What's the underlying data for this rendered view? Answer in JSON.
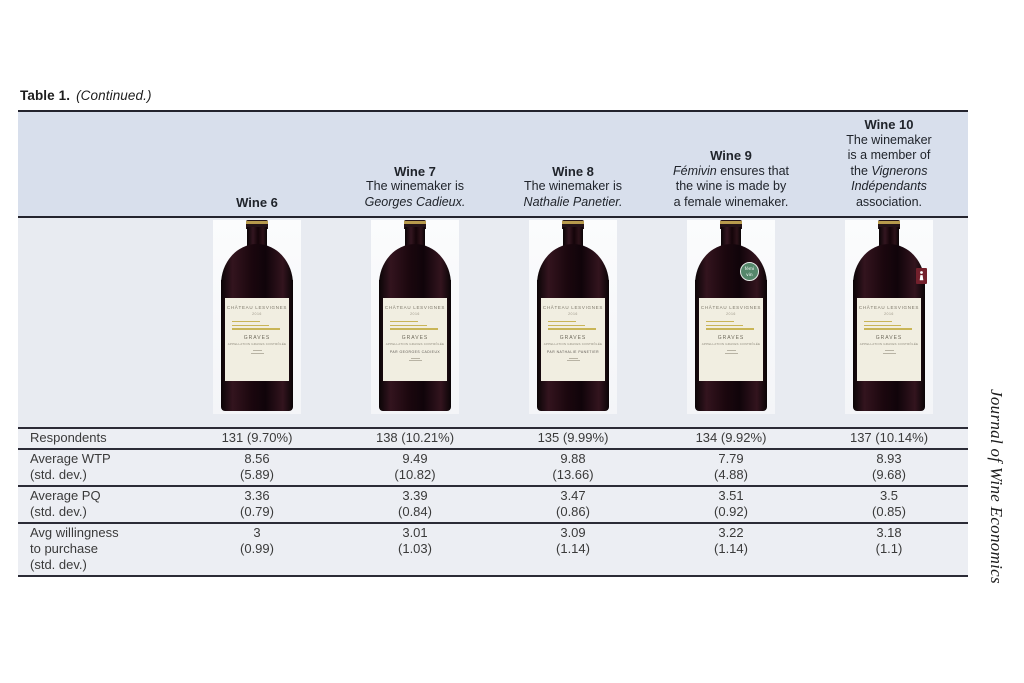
{
  "page": {
    "table_label": "Table 1.",
    "table_label_continued": "(Continued.)",
    "journal_sidebar": "Journal of Wine Economics"
  },
  "colors": {
    "header_band": "#d8dfec",
    "bottle_band": "#e8ebf1",
    "data_band": "#eceef3",
    "border_dark": "#2b2b36",
    "label_gold": "#c9b557",
    "badge_green": "#55876b",
    "badge_red": "#73202c"
  },
  "columns": [
    {
      "id": "wine6",
      "title": "Wine 6",
      "desc_lines": [],
      "badge": null,
      "bottle_label": {
        "chateau": "CHÂTEAU LESVIGNES",
        "year": "2016",
        "region": "GRAVES",
        "appellation": "APPELLATION GRAVES CONTRÔLÉE",
        "winemaker_line": null
      }
    },
    {
      "id": "wine7",
      "title": "Wine 7",
      "desc_lines": [
        [
          {
            "t": "The winemaker is",
            "i": false
          }
        ],
        [
          {
            "t": "Georges Cadieux.",
            "i": true
          }
        ]
      ],
      "badge": null,
      "bottle_label": {
        "chateau": "CHÂTEAU LESVIGNES",
        "year": "2016",
        "region": "GRAVES",
        "appellation": "APPELLATION GRAVES CONTRÔLÉE",
        "winemaker_line": "PAR GEORGES CADIEUX"
      }
    },
    {
      "id": "wine8",
      "title": "Wine 8",
      "desc_lines": [
        [
          {
            "t": "The winemaker is",
            "i": false
          }
        ],
        [
          {
            "t": "Nathalie Panetier.",
            "i": true
          }
        ]
      ],
      "badge": null,
      "bottle_label": {
        "chateau": "CHÂTEAU LESVIGNES",
        "year": "2016",
        "region": "GRAVES",
        "appellation": "APPELLATION GRAVES CONTRÔLÉE",
        "winemaker_line": "PAR NATHALIE PANETIER"
      }
    },
    {
      "id": "wine9",
      "title": "Wine 9",
      "desc_lines": [
        [
          {
            "t": "Fémivin",
            "i": true
          },
          {
            "t": " ensures that",
            "i": false
          }
        ],
        [
          {
            "t": "the wine is made by",
            "i": false
          }
        ],
        [
          {
            "t": "a female winemaker.",
            "i": false
          }
        ]
      ],
      "badge": {
        "type": "circle",
        "lines": [
          "fémi",
          "vin"
        ]
      },
      "bottle_label": {
        "chateau": "CHÂTEAU LESVIGNES",
        "year": "2016",
        "region": "GRAVES",
        "appellation": "APPELLATION GRAVES CONTRÔLÉE",
        "winemaker_line": null
      }
    },
    {
      "id": "wine10",
      "title": "Wine 10",
      "desc_lines": [
        [
          {
            "t": "The winemaker",
            "i": false
          }
        ],
        [
          {
            "t": "is a member of",
            "i": false
          }
        ],
        [
          {
            "t": "the ",
            "i": false
          },
          {
            "t": "Vignerons",
            "i": true
          }
        ],
        [
          {
            "t": "Indépendants",
            "i": true
          }
        ],
        [
          {
            "t": "association.",
            "i": false
          }
        ]
      ],
      "badge": {
        "type": "rect"
      },
      "bottle_label": {
        "chateau": "CHÂTEAU LESVIGNES",
        "year": "2016",
        "region": "GRAVES",
        "appellation": "APPELLATION GRAVES CONTRÔLÉE",
        "winemaker_line": null
      }
    }
  ],
  "rows": [
    {
      "key": "respondents",
      "label_lines": [
        "Respondents"
      ],
      "values": [
        [
          "131 (9.70%)"
        ],
        [
          "138 (10.21%)"
        ],
        [
          "135 (9.99%)"
        ],
        [
          "134 (9.92%)"
        ],
        [
          "137 (10.14%)"
        ]
      ]
    },
    {
      "key": "average-wtp",
      "label_lines": [
        "Average WTP",
        "(std. dev.)"
      ],
      "values": [
        [
          "8.56",
          "(5.89)"
        ],
        [
          "9.49",
          "(10.82)"
        ],
        [
          "9.88",
          "(13.66)"
        ],
        [
          "7.79",
          "(4.88)"
        ],
        [
          "8.93",
          "(9.68)"
        ]
      ]
    },
    {
      "key": "average-pq",
      "label_lines": [
        "Average PQ",
        "(std. dev.)"
      ],
      "values": [
        [
          "3.36",
          "(0.79)"
        ],
        [
          "3.39",
          "(0.84)"
        ],
        [
          "3.47",
          "(0.86)"
        ],
        [
          "3.51",
          "(0.92)"
        ],
        [
          "3.5",
          "(0.85)"
        ]
      ]
    },
    {
      "key": "avg-willingness-to-purchase",
      "label_lines": [
        "Avg willingness",
        "to purchase",
        "(std. dev.)"
      ],
      "values": [
        [
          "3",
          "(0.99)"
        ],
        [
          "3.01",
          "(1.03)"
        ],
        [
          "3.09",
          "(1.14)"
        ],
        [
          "3.22",
          "(1.14)"
        ],
        [
          "3.18",
          "(1.1)"
        ]
      ]
    }
  ]
}
